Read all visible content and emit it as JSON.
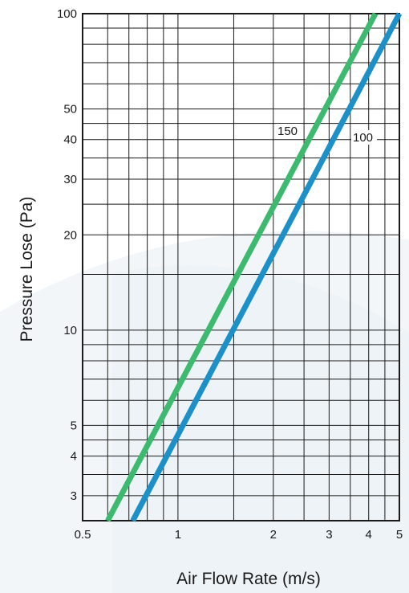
{
  "chart_data": {
    "type": "line",
    "xlabel": "Air Flow Rate (m/s)",
    "ylabel": "Pressure Lose (Pa)",
    "xscale": "log",
    "yscale": "log",
    "xlim": [
      0.5,
      5
    ],
    "ylim": [
      2.5,
      100
    ],
    "grid": true,
    "x_tick_labels": [
      "0.5",
      "1",
      "2",
      "3",
      "4",
      "5"
    ],
    "x_tick_values": [
      0.5,
      1,
      2,
      3,
      4,
      5
    ],
    "y_tick_labels": [
      "100",
      "50",
      "40",
      "30",
      "20",
      "10",
      "5",
      "4",
      "3"
    ],
    "y_tick_values": [
      100,
      50,
      40,
      30,
      20,
      10,
      5,
      4,
      3
    ],
    "series": [
      {
        "name": "150",
        "color": "#3dba6f",
        "x": [
          0.6,
          4.2
        ],
        "y": [
          2.5,
          100
        ]
      },
      {
        "name": "100",
        "color": "#1e90c8",
        "x": [
          0.72,
          5.0
        ],
        "y": [
          2.5,
          100
        ]
      }
    ]
  }
}
